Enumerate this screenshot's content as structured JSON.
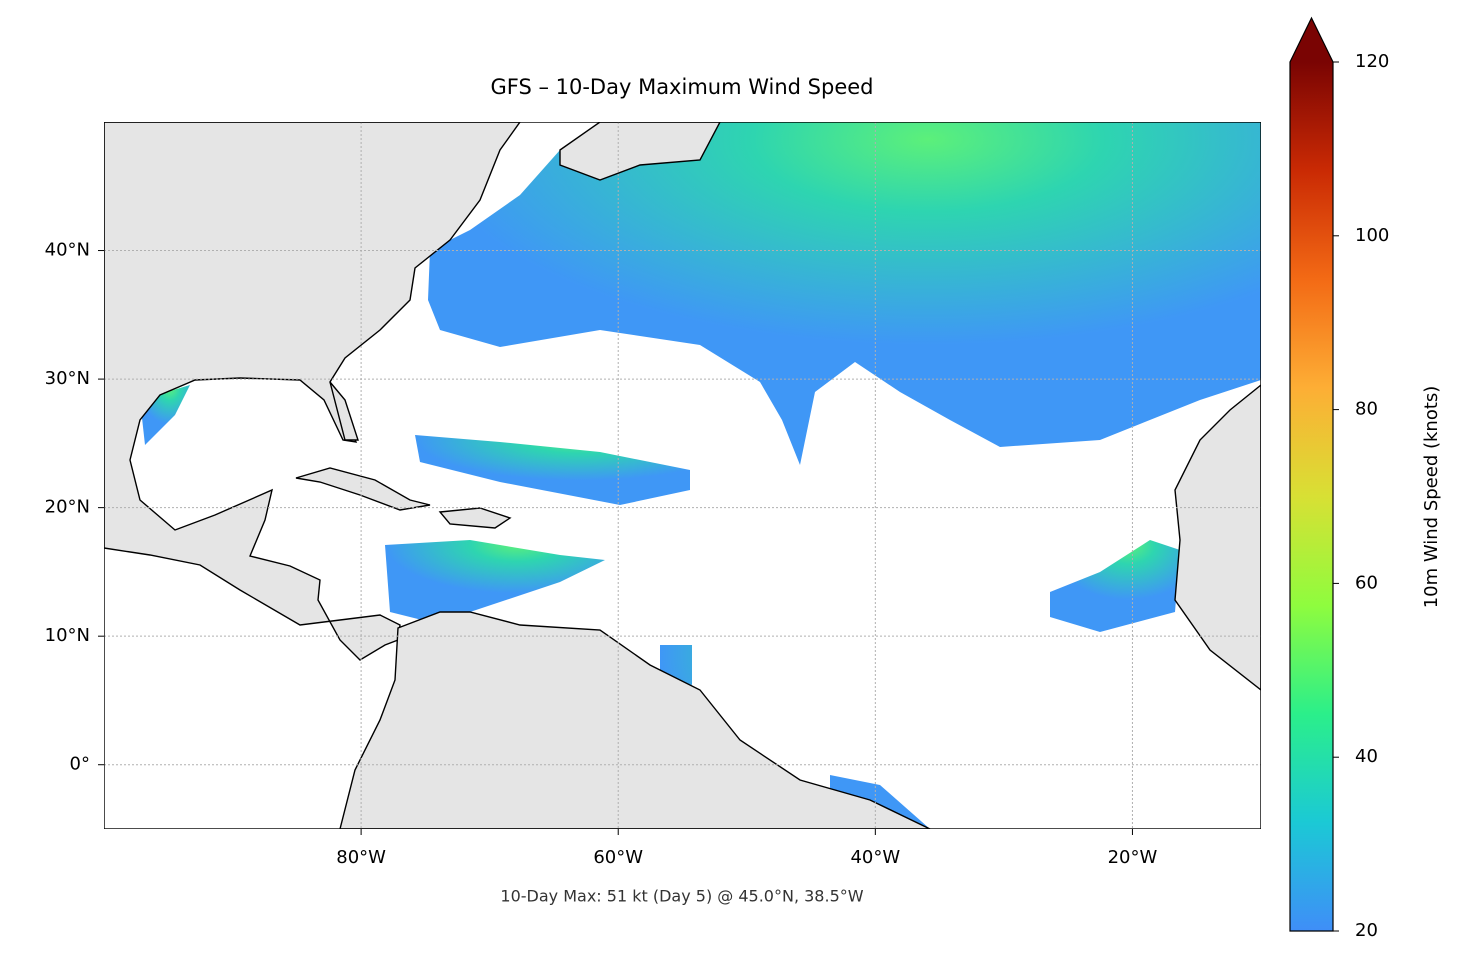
{
  "map": {
    "title": "GFS – 10-Day Maximum Wind Speed",
    "footnote": "10-Day Max: 51 kt (Day 5) @ 45.0°N, 38.5°W",
    "lonlim": [
      -100,
      -10
    ],
    "latlim": [
      -5,
      50
    ],
    "lonticks": [
      {
        "value": -80,
        "label": "80°W"
      },
      {
        "value": -60,
        "label": "60°W"
      },
      {
        "value": -40,
        "label": "40°W"
      },
      {
        "value": -20,
        "label": "20°W"
      }
    ],
    "latticks": [
      {
        "value": 40,
        "label": "40°N"
      },
      {
        "value": 30,
        "label": "30°N"
      },
      {
        "value": 20,
        "label": "20°N"
      },
      {
        "value": 10,
        "label": "10°N"
      },
      {
        "value": 0,
        "label": "0°"
      }
    ],
    "grid": true,
    "colorbar": {
      "label": "10m Wind Speed (knots)",
      "clim": [
        20,
        120
      ],
      "ticks": [
        20,
        40,
        60,
        80,
        100,
        120
      ],
      "colors": [
        "#3f8ef8",
        "#1bc9d5",
        "#2bef8a",
        "#8ffc3e",
        "#d8e034",
        "#fdae35",
        "#f36a15",
        "#ca2a04",
        "#7a0403"
      ],
      "extend_color": "#7a0403"
    }
  }
}
